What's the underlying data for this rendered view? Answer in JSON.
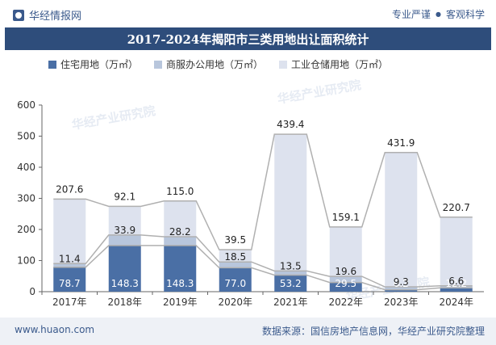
{
  "header": {
    "brand": "华经情报网",
    "slogan_left": "专业严谨",
    "slogan_right": "客观科学"
  },
  "footer": {
    "site": "www.huaon.com",
    "source": "数据来源：国信房地产信息网，华经产业研究院整理"
  },
  "colors": {
    "residential": "#4a6fa5",
    "commercial": "#b8c6dc",
    "industrial": "#dde2ee",
    "title_bg": "#2e4d7b"
  },
  "chart_data": {
    "type": "bar",
    "stacked": true,
    "title": "2017-2024年揭阳市三类用地出让面积统计",
    "categories": [
      "2017年",
      "2018年",
      "2019年",
      "2020年",
      "2021年",
      "2022年",
      "2023年",
      "2024年"
    ],
    "series": [
      {
        "name": "住宅用地（万㎡）",
        "values": [
          78.7,
          148.3,
          148.3,
          77.0,
          53.2,
          29.5,
          6.2,
          12.2
        ]
      },
      {
        "name": "商服办公用地（万㎡）",
        "values": [
          11.4,
          33.9,
          28.2,
          18.5,
          13.5,
          19.6,
          9.3,
          6.6
        ]
      },
      {
        "name": "工业仓储用地（万㎡）",
        "values": [
          207.6,
          92.1,
          115.0,
          39.5,
          439.4,
          159.1,
          431.9,
          220.7
        ]
      }
    ],
    "ylim": [
      0,
      600
    ],
    "yticks": [
      0,
      100,
      200,
      300,
      400,
      500,
      600
    ],
    "legend_position": "top",
    "grid": false,
    "watermark": "华经产业研究院"
  }
}
